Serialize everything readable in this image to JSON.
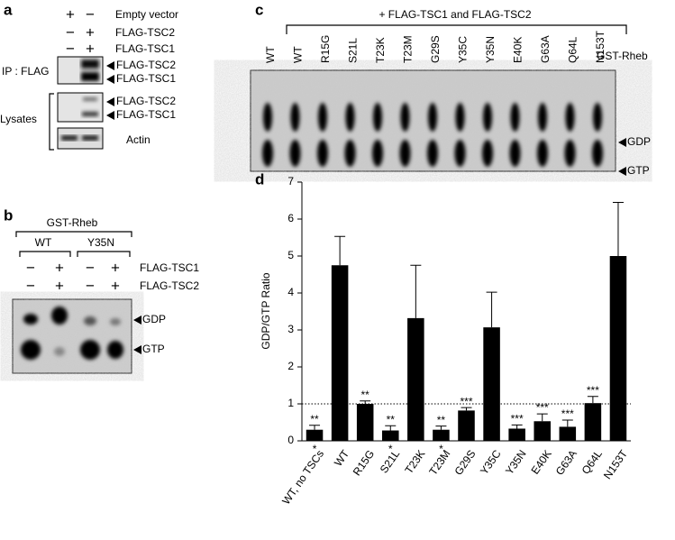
{
  "panel_a": {
    "label": "a",
    "rows": [
      "Empty vector",
      "FLAG-TSC2",
      "FLAG-TSC1"
    ],
    "signs": [
      [
        "+",
        "−"
      ],
      [
        "−",
        "+"
      ],
      [
        "−",
        "+"
      ]
    ],
    "ip_label": "IP : FLAG",
    "ip_bands": [
      "FLAG-TSC2",
      "FLAG-TSC1"
    ],
    "lysates_label": "Lysates",
    "lysate_bands": [
      "FLAG-TSC2",
      "FLAG-TSC1"
    ],
    "loading": "Actin"
  },
  "panel_b": {
    "label": "b",
    "header": "GST-Rheb",
    "groups": [
      "WT",
      "Y35N"
    ],
    "rows": [
      "FLAG-TSC1",
      "FLAG-TSC2"
    ],
    "signs": [
      [
        "−",
        "+",
        "−",
        "+"
      ],
      [
        "−",
        "+",
        "−",
        "+"
      ]
    ],
    "bands": [
      "GDP",
      "GTP"
    ]
  },
  "panel_c": {
    "label": "c",
    "header": "+ FLAG-TSC1 and FLAG-TSC2",
    "lanes": [
      "WT",
      "WT",
      "R15G",
      "S21L",
      "T23K",
      "T23M",
      "G29S",
      "Y35C",
      "Y35N",
      "E40K",
      "G63A",
      "Q64L",
      "N153T"
    ],
    "lane_title": "GST-Rheb",
    "bands": [
      "GDP",
      "GTP"
    ]
  },
  "chart_data": {
    "type": "bar",
    "panel_label": "d",
    "y_label": "GDP/GTP Ratio",
    "categories": [
      "WT, no TSCs",
      "WT",
      "R15G",
      "S21L",
      "T23K",
      "T23M",
      "G29S",
      "Y35C",
      "Y35N",
      "E40K",
      "G63A",
      "Q64L",
      "N153T"
    ],
    "values": [
      0.3,
      4.75,
      1.0,
      0.28,
      3.32,
      0.3,
      0.82,
      3.07,
      0.33,
      0.53,
      0.38,
      1.02,
      5.0
    ],
    "errors": [
      0.12,
      0.78,
      0.08,
      0.13,
      1.43,
      0.1,
      0.08,
      0.95,
      0.1,
      0.2,
      0.18,
      0.18,
      1.45
    ],
    "sig_above": [
      "**",
      null,
      "**",
      "**",
      null,
      "**",
      "***",
      null,
      "***",
      "***",
      "***",
      "***",
      null
    ],
    "sig_below": [
      "*",
      null,
      null,
      "*",
      null,
      "*",
      null,
      null,
      null,
      null,
      null,
      null,
      null
    ],
    "color": "#000000",
    "ref_line": 1,
    "ylim": [
      0,
      7
    ],
    "yticks": [
      0,
      1,
      2,
      3,
      4,
      5,
      6,
      7
    ]
  }
}
